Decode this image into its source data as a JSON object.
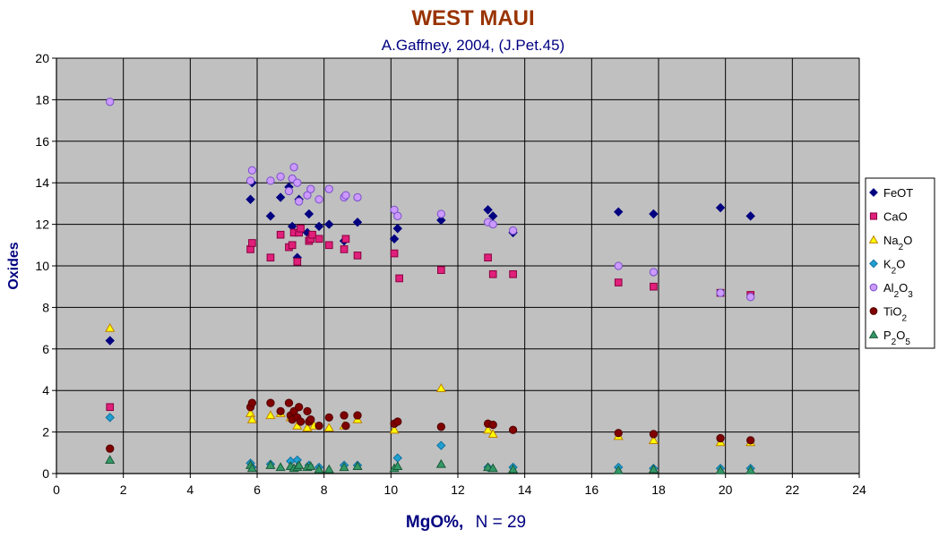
{
  "chart_data": {
    "type": "scatter",
    "title": "WEST MAUI",
    "subtitle": "A.Gaffney, 2004, (J.Pet.45)",
    "xlabel_main": "MgO%,",
    "xlabel_n": "N = 29",
    "ylabel": "Oxides",
    "xlim": [
      0,
      24
    ],
    "ylim": [
      0,
      20
    ],
    "xticks": [
      0,
      2,
      4,
      6,
      8,
      10,
      12,
      14,
      16,
      18,
      20,
      22,
      24
    ],
    "yticks": [
      0,
      2,
      4,
      6,
      8,
      10,
      12,
      14,
      16,
      18,
      20
    ],
    "grid": true,
    "legend_position": "right",
    "plot_background": "#c0c0c0",
    "series": [
      {
        "name": "FeOT",
        "label_base": "FeOT",
        "label_sub": "",
        "marker": "diamond",
        "fill": "#000080",
        "stroke": "#000080",
        "points": [
          [
            1.6,
            6.4
          ],
          [
            5.8,
            13.2
          ],
          [
            5.85,
            14.0
          ],
          [
            6.4,
            12.4
          ],
          [
            6.7,
            13.3
          ],
          [
            6.95,
            13.8
          ],
          [
            7.05,
            11.9
          ],
          [
            7.2,
            10.4
          ],
          [
            7.25,
            13.2
          ],
          [
            7.5,
            11.6
          ],
          [
            7.55,
            12.5
          ],
          [
            7.85,
            11.9
          ],
          [
            8.15,
            12.0
          ],
          [
            8.6,
            11.2
          ],
          [
            9.0,
            12.1
          ],
          [
            10.1,
            11.3
          ],
          [
            10.2,
            11.8
          ],
          [
            11.5,
            12.2
          ],
          [
            12.9,
            12.7
          ],
          [
            13.05,
            12.4
          ],
          [
            13.65,
            11.6
          ],
          [
            16.8,
            12.6
          ],
          [
            17.85,
            12.5
          ],
          [
            19.85,
            12.8
          ],
          [
            20.75,
            12.4
          ]
        ]
      },
      {
        "name": "CaO",
        "label_base": "CaO",
        "label_sub": "",
        "marker": "square",
        "fill": "#e0207a",
        "stroke": "#8a0040",
        "points": [
          [
            1.6,
            3.2
          ],
          [
            5.8,
            10.8
          ],
          [
            5.85,
            11.1
          ],
          [
            6.4,
            10.4
          ],
          [
            6.7,
            11.5
          ],
          [
            6.95,
            10.9
          ],
          [
            7.05,
            11.0
          ],
          [
            7.1,
            11.6
          ],
          [
            7.2,
            10.2
          ],
          [
            7.25,
            11.6
          ],
          [
            7.3,
            11.8
          ],
          [
            7.55,
            11.2
          ],
          [
            7.6,
            11.3
          ],
          [
            7.65,
            11.5
          ],
          [
            7.85,
            11.3
          ],
          [
            8.15,
            11.0
          ],
          [
            8.6,
            10.8
          ],
          [
            8.65,
            11.3
          ],
          [
            9.0,
            10.5
          ],
          [
            10.1,
            10.6
          ],
          [
            10.25,
            9.4
          ],
          [
            11.5,
            9.8
          ],
          [
            12.9,
            10.4
          ],
          [
            13.05,
            9.6
          ],
          [
            13.65,
            9.6
          ],
          [
            16.8,
            9.2
          ],
          [
            17.85,
            9.0
          ],
          [
            19.85,
            8.7
          ],
          [
            20.75,
            8.6
          ]
        ]
      },
      {
        "name": "Na2O",
        "label_base": "Na",
        "label_sub": "2",
        "label_tail": "O",
        "marker": "triangle",
        "fill": "#ffff00",
        "stroke": "#c08000",
        "points": [
          [
            1.6,
            7.0
          ],
          [
            5.8,
            2.9
          ],
          [
            5.85,
            2.6
          ],
          [
            6.4,
            2.8
          ],
          [
            6.7,
            2.9
          ],
          [
            7.0,
            2.7
          ],
          [
            7.2,
            2.3
          ],
          [
            7.5,
            2.2
          ],
          [
            7.7,
            2.3
          ],
          [
            8.15,
            2.2
          ],
          [
            8.6,
            2.3
          ],
          [
            9.0,
            2.6
          ],
          [
            10.1,
            2.1
          ],
          [
            11.5,
            4.1
          ],
          [
            12.9,
            2.1
          ],
          [
            13.05,
            1.9
          ],
          [
            16.8,
            1.8
          ],
          [
            17.85,
            1.6
          ],
          [
            19.85,
            1.5
          ],
          [
            20.75,
            1.5
          ]
        ]
      },
      {
        "name": "K2O",
        "label_base": "K",
        "label_sub": "2",
        "label_tail": "O",
        "marker": "diamond",
        "fill": "#20a0d0",
        "stroke": "#1070a0",
        "points": [
          [
            1.6,
            2.7
          ],
          [
            5.8,
            0.5
          ],
          [
            5.85,
            0.3
          ],
          [
            6.4,
            0.45
          ],
          [
            7.0,
            0.6
          ],
          [
            7.2,
            0.65
          ],
          [
            7.55,
            0.4
          ],
          [
            7.85,
            0.3
          ],
          [
            8.6,
            0.4
          ],
          [
            9.0,
            0.4
          ],
          [
            10.2,
            0.75
          ],
          [
            11.5,
            1.35
          ],
          [
            12.9,
            0.3
          ],
          [
            13.65,
            0.3
          ],
          [
            16.8,
            0.3
          ],
          [
            17.85,
            0.25
          ],
          [
            19.85,
            0.25
          ],
          [
            20.75,
            0.25
          ]
        ]
      },
      {
        "name": "Al2O3",
        "label_base": "Al",
        "label_sub": "2",
        "label_tail": "O",
        "label_sub2": "3",
        "marker": "circle",
        "fill": "#cc99ff",
        "stroke": "#7a50c8",
        "points": [
          [
            1.6,
            17.9
          ],
          [
            5.8,
            14.1
          ],
          [
            5.85,
            14.6
          ],
          [
            6.4,
            14.1
          ],
          [
            6.7,
            14.3
          ],
          [
            6.95,
            13.6
          ],
          [
            7.05,
            14.2
          ],
          [
            7.1,
            14.75
          ],
          [
            7.2,
            14.0
          ],
          [
            7.25,
            13.1
          ],
          [
            7.5,
            13.4
          ],
          [
            7.6,
            13.7
          ],
          [
            7.85,
            13.2
          ],
          [
            8.15,
            13.7
          ],
          [
            8.6,
            13.3
          ],
          [
            8.65,
            13.4
          ],
          [
            9.0,
            13.3
          ],
          [
            10.1,
            12.7
          ],
          [
            10.2,
            12.4
          ],
          [
            11.5,
            12.5
          ],
          [
            12.9,
            12.1
          ],
          [
            13.05,
            12.0
          ],
          [
            13.65,
            11.7
          ],
          [
            16.8,
            10.0
          ],
          [
            17.85,
            9.7
          ],
          [
            19.85,
            8.7
          ],
          [
            20.75,
            8.5
          ]
        ]
      },
      {
        "name": "TiO2",
        "label_base": "TiO",
        "label_sub": "2",
        "marker": "circle",
        "fill": "#800000",
        "stroke": "#500000",
        "points": [
          [
            1.6,
            1.2
          ],
          [
            5.8,
            3.2
          ],
          [
            5.85,
            3.4
          ],
          [
            6.4,
            3.4
          ],
          [
            6.7,
            3.0
          ],
          [
            6.95,
            3.4
          ],
          [
            7.0,
            2.8
          ],
          [
            7.05,
            2.6
          ],
          [
            7.1,
            3.0
          ],
          [
            7.2,
            2.7
          ],
          [
            7.25,
            3.2
          ],
          [
            7.3,
            2.5
          ],
          [
            7.5,
            3.0
          ],
          [
            7.55,
            2.5
          ],
          [
            7.6,
            2.6
          ],
          [
            7.85,
            2.3
          ],
          [
            8.15,
            2.7
          ],
          [
            8.6,
            2.8
          ],
          [
            8.65,
            2.3
          ],
          [
            9.0,
            2.8
          ],
          [
            10.1,
            2.4
          ],
          [
            10.2,
            2.5
          ],
          [
            11.5,
            2.25
          ],
          [
            12.9,
            2.4
          ],
          [
            13.05,
            2.35
          ],
          [
            13.65,
            2.1
          ],
          [
            16.8,
            1.95
          ],
          [
            17.85,
            1.9
          ],
          [
            19.85,
            1.7
          ],
          [
            20.75,
            1.6
          ]
        ]
      },
      {
        "name": "P2O5",
        "label_base": "P",
        "label_sub": "2",
        "label_tail": "O",
        "label_sub2": "5",
        "marker": "triangle",
        "fill": "#339966",
        "stroke": "#1a5a3a",
        "points": [
          [
            1.6,
            0.65
          ],
          [
            5.8,
            0.4
          ],
          [
            5.85,
            0.25
          ],
          [
            6.4,
            0.4
          ],
          [
            6.7,
            0.3
          ],
          [
            7.0,
            0.35
          ],
          [
            7.1,
            0.25
          ],
          [
            7.2,
            0.3
          ],
          [
            7.25,
            0.4
          ],
          [
            7.5,
            0.3
          ],
          [
            7.6,
            0.35
          ],
          [
            7.85,
            0.2
          ],
          [
            8.15,
            0.2
          ],
          [
            8.6,
            0.3
          ],
          [
            9.0,
            0.35
          ],
          [
            10.1,
            0.25
          ],
          [
            10.2,
            0.35
          ],
          [
            11.5,
            0.45
          ],
          [
            12.9,
            0.3
          ],
          [
            13.05,
            0.25
          ],
          [
            13.65,
            0.2
          ],
          [
            16.8,
            0.15
          ],
          [
            17.85,
            0.2
          ],
          [
            19.85,
            0.15
          ],
          [
            20.75,
            0.15
          ]
        ]
      }
    ]
  },
  "colors": {
    "title": "#993300",
    "subtitle": "#000080",
    "axis_title": "#000080",
    "grid": "#000000",
    "legend_bg": "#ffffff"
  }
}
